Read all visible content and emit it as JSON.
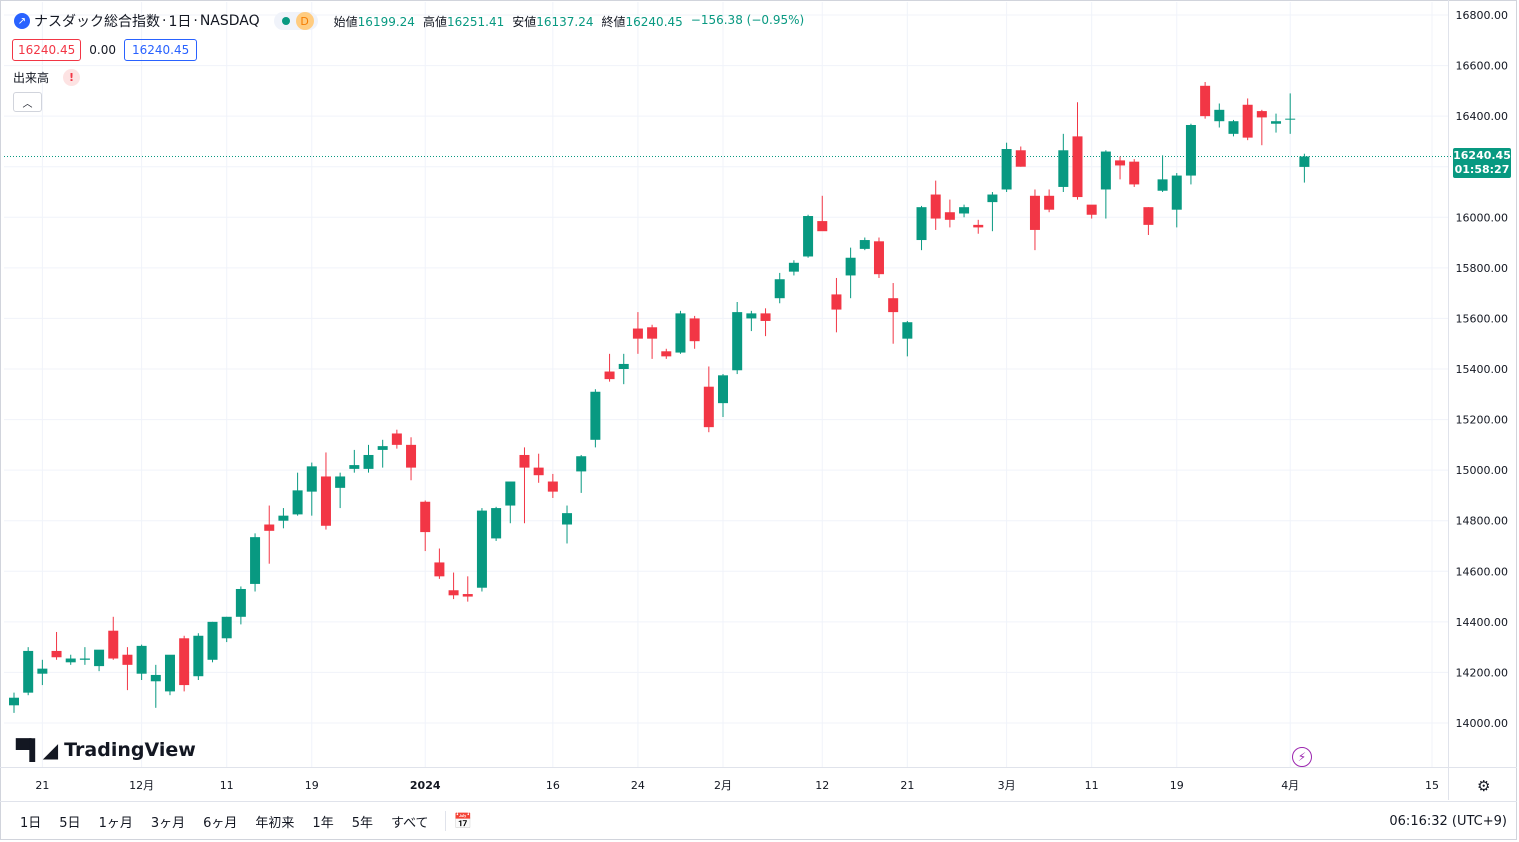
{
  "header": {
    "symbol_title": "ナスダック総合指数",
    "interval": "1日",
    "exchange": "NASDAQ",
    "separator": "·",
    "status_letter": "D",
    "ohlc": {
      "open_label": "始値",
      "open_value": "16199.24",
      "high_label": "高値",
      "high_value": "16251.41",
      "low_label": "安値",
      "low_value": "16137.24",
      "close_label": "終値",
      "close_value": "16240.45",
      "change": "−156.38 (−0.95%)"
    },
    "bid": "16240.45",
    "spread": "0.00",
    "ask": "16240.45",
    "volume_label": "出来高",
    "warning_mark": "!"
  },
  "last_price": {
    "price": "16240.45",
    "countdown": "01:58:27"
  },
  "branding": {
    "logo_text": "TradingView"
  },
  "bottom_bar": {
    "ranges": [
      "1日",
      "5日",
      "1ヶ月",
      "3ヶ月",
      "6ヶ月",
      "年初来",
      "1年",
      "5年",
      "すべて"
    ],
    "clock": "06:16:32 (UTC+9)"
  },
  "colors": {
    "up": "#089981",
    "down": "#f23645",
    "grid": "#f0f3fa",
    "accent": "#2962ff"
  },
  "icons": [
    "chart-logo-icon",
    "calendar-range-icon",
    "lightning-icon",
    "settings-icon",
    "chevron-up-icon"
  ],
  "chart_data": {
    "type": "candlestick",
    "ylim": [
      13840,
      16870
    ],
    "y_ticks": [
      14000,
      14200,
      14400,
      14600,
      14800,
      15000,
      15200,
      15400,
      15600,
      15800,
      16000,
      16200,
      16400,
      16600,
      16800
    ],
    "y_tick_labels": [
      "14000.00",
      "14200.00",
      "14400.00",
      "14600.00",
      "14800.00",
      "15000.00",
      "15200.00",
      "15400.00",
      "15600.00",
      "15800.00",
      "16000.00",
      "16200.00",
      "16400.00",
      "16600.00",
      "16800.00"
    ],
    "x_ticks": [
      {
        "label": "21",
        "index": 2,
        "bold": false
      },
      {
        "label": "12月",
        "index": 9,
        "bold": false
      },
      {
        "label": "11",
        "index": 15,
        "bold": false
      },
      {
        "label": "19",
        "index": 21,
        "bold": false
      },
      {
        "label": "2024",
        "index": 29,
        "bold": true
      },
      {
        "label": "16",
        "index": 38,
        "bold": false
      },
      {
        "label": "24",
        "index": 44,
        "bold": false
      },
      {
        "label": "2月",
        "index": 50,
        "bold": false
      },
      {
        "label": "12",
        "index": 57,
        "bold": false
      },
      {
        "label": "21",
        "index": 63,
        "bold": false
      },
      {
        "label": "3月",
        "index": 70,
        "bold": false
      },
      {
        "label": "11",
        "index": 76,
        "bold": false
      },
      {
        "label": "19",
        "index": 82,
        "bold": false
      },
      {
        "label": "4月",
        "index": 90,
        "bold": false
      },
      {
        "label": "15",
        "index": 100,
        "bold": false
      }
    ],
    "last_price": 16240.45,
    "candles": [
      {
        "o": 14070,
        "h": 14120,
        "l": 14040,
        "c": 14100
      },
      {
        "o": 14120,
        "h": 14300,
        "l": 14110,
        "c": 14285
      },
      {
        "o": 14195,
        "h": 14250,
        "l": 14150,
        "c": 14215
      },
      {
        "o": 14285,
        "h": 14360,
        "l": 14250,
        "c": 14260
      },
      {
        "o": 14240,
        "h": 14270,
        "l": 14230,
        "c": 14255
      },
      {
        "o": 14250,
        "h": 14300,
        "l": 14230,
        "c": 14255
      },
      {
        "o": 14225,
        "h": 14280,
        "l": 14205,
        "c": 14290
      },
      {
        "o": 14365,
        "h": 14420,
        "l": 14250,
        "c": 14255
      },
      {
        "o": 14270,
        "h": 14300,
        "l": 14130,
        "c": 14230
      },
      {
        "o": 14195,
        "h": 14310,
        "l": 14170,
        "c": 14305
      },
      {
        "o": 14165,
        "h": 14230,
        "l": 14060,
        "c": 14190
      },
      {
        "o": 14125,
        "h": 14265,
        "l": 14110,
        "c": 14270
      },
      {
        "o": 14335,
        "h": 14345,
        "l": 14125,
        "c": 14150
      },
      {
        "o": 14185,
        "h": 14355,
        "l": 14170,
        "c": 14345
      },
      {
        "o": 14250,
        "h": 14400,
        "l": 14240,
        "c": 14400
      },
      {
        "o": 14335,
        "h": 14420,
        "l": 14320,
        "c": 14420
      },
      {
        "o": 14420,
        "h": 14540,
        "l": 14390,
        "c": 14530
      },
      {
        "o": 14550,
        "h": 14750,
        "l": 14520,
        "c": 14735
      },
      {
        "o": 14785,
        "h": 14860,
        "l": 14630,
        "c": 14760
      },
      {
        "o": 14800,
        "h": 14850,
        "l": 14770,
        "c": 14820
      },
      {
        "o": 14825,
        "h": 14990,
        "l": 14820,
        "c": 14920
      },
      {
        "o": 14915,
        "h": 15030,
        "l": 14820,
        "c": 15015
      },
      {
        "o": 14975,
        "h": 15070,
        "l": 14765,
        "c": 14780
      },
      {
        "o": 14930,
        "h": 14990,
        "l": 14850,
        "c": 14975
      },
      {
        "o": 15005,
        "h": 15080,
        "l": 14990,
        "c": 15020
      },
      {
        "o": 15005,
        "h": 15100,
        "l": 14990,
        "c": 15060
      },
      {
        "o": 15080,
        "h": 15120,
        "l": 15010,
        "c": 15095
      },
      {
        "o": 15145,
        "h": 15160,
        "l": 15085,
        "c": 15100
      },
      {
        "o": 15100,
        "h": 15130,
        "l": 14960,
        "c": 15010
      },
      {
        "o": 14875,
        "h": 14880,
        "l": 14680,
        "c": 14755
      },
      {
        "o": 14635,
        "h": 14690,
        "l": 14570,
        "c": 14580
      },
      {
        "o": 14525,
        "h": 14595,
        "l": 14490,
        "c": 14505
      },
      {
        "o": 14510,
        "h": 14580,
        "l": 14480,
        "c": 14500
      },
      {
        "o": 14535,
        "h": 14850,
        "l": 14520,
        "c": 14840
      },
      {
        "o": 14730,
        "h": 14855,
        "l": 14720,
        "c": 14850
      },
      {
        "o": 14860,
        "h": 14945,
        "l": 14790,
        "c": 14955
      },
      {
        "o": 15060,
        "h": 15090,
        "l": 14790,
        "c": 15010
      },
      {
        "o": 15010,
        "h": 15065,
        "l": 14950,
        "c": 14980
      },
      {
        "o": 14955,
        "h": 14985,
        "l": 14890,
        "c": 14915
      },
      {
        "o": 14785,
        "h": 14860,
        "l": 14710,
        "c": 14830
      },
      {
        "o": 14995,
        "h": 15060,
        "l": 14910,
        "c": 15055
      },
      {
        "o": 15120,
        "h": 15320,
        "l": 15090,
        "c": 15310
      },
      {
        "o": 15390,
        "h": 15460,
        "l": 15350,
        "c": 15360
      },
      {
        "o": 15400,
        "h": 15460,
        "l": 15340,
        "c": 15420
      },
      {
        "o": 15560,
        "h": 15625,
        "l": 15460,
        "c": 15520
      },
      {
        "o": 15565,
        "h": 15575,
        "l": 15440,
        "c": 15520
      },
      {
        "o": 15470,
        "h": 15480,
        "l": 15440,
        "c": 15450
      },
      {
        "o": 15465,
        "h": 15630,
        "l": 15460,
        "c": 15620
      },
      {
        "o": 15600,
        "h": 15610,
        "l": 15480,
        "c": 15510
      },
      {
        "o": 15330,
        "h": 15410,
        "l": 15150,
        "c": 15170
      },
      {
        "o": 15265,
        "h": 15380,
        "l": 15210,
        "c": 15375
      },
      {
        "o": 15395,
        "h": 15665,
        "l": 15380,
        "c": 15625
      },
      {
        "o": 15600,
        "h": 15630,
        "l": 15550,
        "c": 15620
      },
      {
        "o": 15620,
        "h": 15640,
        "l": 15530,
        "c": 15590
      },
      {
        "o": 15680,
        "h": 15780,
        "l": 15660,
        "c": 15755
      },
      {
        "o": 15785,
        "h": 15830,
        "l": 15770,
        "c": 15820
      },
      {
        "o": 15845,
        "h": 16010,
        "l": 15840,
        "c": 16005
      },
      {
        "o": 15985,
        "h": 16085,
        "l": 15960,
        "c": 15945
      },
      {
        "o": 15695,
        "h": 15760,
        "l": 15545,
        "c": 15635
      },
      {
        "o": 15770,
        "h": 15880,
        "l": 15680,
        "c": 15840
      },
      {
        "o": 15875,
        "h": 15920,
        "l": 15870,
        "c": 15910
      },
      {
        "o": 15905,
        "h": 15920,
        "l": 15760,
        "c": 15775
      },
      {
        "o": 15680,
        "h": 15740,
        "l": 15500,
        "c": 15625
      },
      {
        "o": 15520,
        "h": 15590,
        "l": 15450,
        "c": 15585
      },
      {
        "o": 15910,
        "h": 16045,
        "l": 15870,
        "c": 16040
      },
      {
        "o": 16090,
        "h": 16145,
        "l": 15950,
        "c": 15995
      },
      {
        "o": 16020,
        "h": 16070,
        "l": 15960,
        "c": 15990
      },
      {
        "o": 16015,
        "h": 16050,
        "l": 16000,
        "c": 16040
      },
      {
        "o": 15970,
        "h": 15990,
        "l": 15935,
        "c": 15960
      },
      {
        "o": 16060,
        "h": 16100,
        "l": 15945,
        "c": 16090
      },
      {
        "o": 16110,
        "h": 16295,
        "l": 16100,
        "c": 16270
      },
      {
        "o": 16265,
        "h": 16280,
        "l": 16200,
        "c": 16200
      },
      {
        "o": 16085,
        "h": 16110,
        "l": 15870,
        "c": 15950
      },
      {
        "o": 16085,
        "h": 16110,
        "l": 16020,
        "c": 16030
      },
      {
        "o": 16120,
        "h": 16330,
        "l": 16100,
        "c": 16265
      },
      {
        "o": 16320,
        "h": 16455,
        "l": 16070,
        "c": 16080
      },
      {
        "o": 16050,
        "h": 16045,
        "l": 15995,
        "c": 16010
      },
      {
        "o": 16110,
        "h": 16265,
        "l": 15995,
        "c": 16260
      },
      {
        "o": 16225,
        "h": 16240,
        "l": 16150,
        "c": 16205
      },
      {
        "o": 16220,
        "h": 16230,
        "l": 16120,
        "c": 16130
      },
      {
        "o": 16040,
        "h": 16040,
        "l": 15930,
        "c": 15970
      },
      {
        "o": 16105,
        "h": 16245,
        "l": 16100,
        "c": 16150
      },
      {
        "o": 16030,
        "h": 16175,
        "l": 15960,
        "c": 16165
      },
      {
        "o": 16165,
        "h": 16370,
        "l": 16130,
        "c": 16365
      },
      {
        "o": 16520,
        "h": 16535,
        "l": 16390,
        "c": 16400
      },
      {
        "o": 16380,
        "h": 16450,
        "l": 16355,
        "c": 16425
      },
      {
        "o": 16330,
        "h": 16385,
        "l": 16320,
        "c": 16380
      },
      {
        "o": 16445,
        "h": 16470,
        "l": 16305,
        "c": 16315
      },
      {
        "o": 16420,
        "h": 16425,
        "l": 16285,
        "c": 16395
      },
      {
        "o": 16370,
        "h": 16410,
        "l": 16335,
        "c": 16380
      },
      {
        "o": 16390,
        "h": 16490,
        "l": 16330,
        "c": 16390
      },
      {
        "o": 16199.24,
        "h": 16251.41,
        "l": 16137.24,
        "c": 16240.45
      }
    ]
  }
}
